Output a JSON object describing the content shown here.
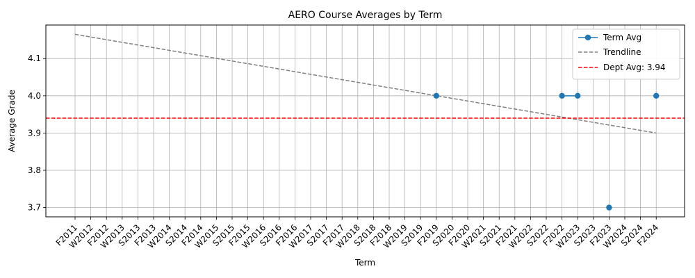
{
  "chart_data": {
    "type": "line",
    "title": "AERO Course Averages by Term",
    "xlabel": "Term",
    "ylabel": "Average Grade",
    "categories": [
      "F2011",
      "W2012",
      "F2012",
      "W2013",
      "S2013",
      "F2013",
      "W2014",
      "S2014",
      "F2014",
      "W2015",
      "S2015",
      "F2015",
      "W2016",
      "S2016",
      "F2016",
      "W2017",
      "S2017",
      "F2017",
      "W2018",
      "S2018",
      "F2018",
      "W2019",
      "S2019",
      "F2019",
      "S2020",
      "F2020",
      "W2021",
      "S2021",
      "F2021",
      "W2022",
      "S2022",
      "F2022",
      "W2023",
      "S2023",
      "F2023",
      "W2024",
      "S2024",
      "F2024"
    ],
    "ylim": [
      3.675,
      4.19
    ],
    "yticks": [
      3.7,
      3.8,
      3.9,
      4.0,
      4.1
    ],
    "ytick_labels": [
      "3.7",
      "3.8",
      "3.9",
      "4.0",
      "4.1"
    ],
    "grid": true,
    "legend_position": "top-right",
    "series": [
      {
        "name": "Term Avg",
        "color": "#1f77b4",
        "style": "solid-with-markers",
        "values": [
          null,
          null,
          null,
          null,
          null,
          null,
          null,
          null,
          null,
          null,
          null,
          null,
          null,
          null,
          null,
          null,
          null,
          null,
          null,
          null,
          null,
          null,
          null,
          4.0,
          null,
          null,
          null,
          null,
          null,
          null,
          null,
          4.0,
          4.0,
          null,
          3.7,
          null,
          null,
          4.0
        ]
      },
      {
        "name": "Trendline",
        "color": "#808080",
        "style": "dashed",
        "x_start": "F2011",
        "x_end": "F2024",
        "y_start": 4.165,
        "y_end": 3.9
      },
      {
        "name": "Dept Avg: 3.94",
        "color": "#ff0000",
        "style": "dashed-horizontal",
        "value": 3.94
      }
    ]
  }
}
